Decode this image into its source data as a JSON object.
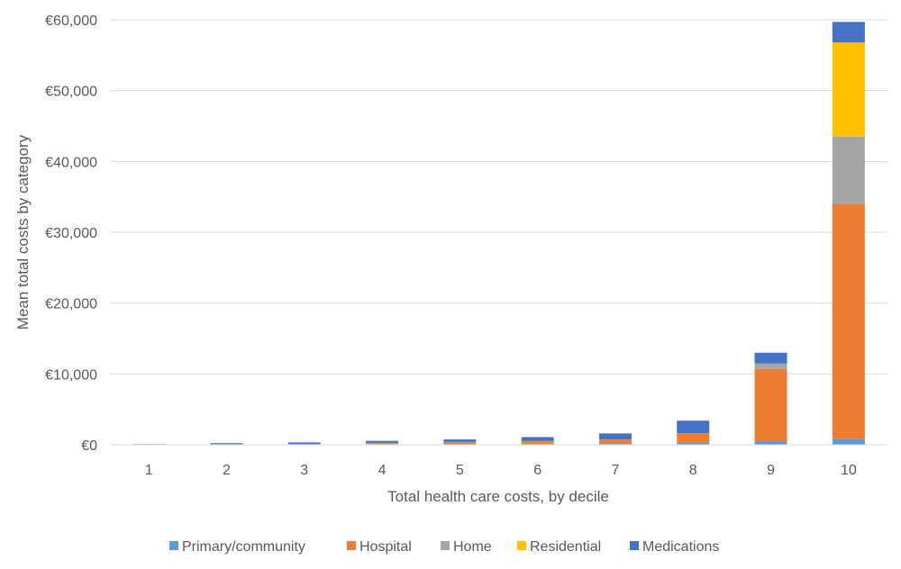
{
  "chart_data": {
    "type": "bar",
    "stacked": true,
    "title": "",
    "xlabel": "Total health care costs, by decile",
    "ylabel": "Mean total costs by category",
    "categories": [
      "1",
      "2",
      "3",
      "4",
      "5",
      "6",
      "7",
      "8",
      "9",
      "10"
    ],
    "ylim": [
      0,
      60000
    ],
    "yticks": [
      0,
      10000,
      20000,
      30000,
      40000,
      50000,
      60000
    ],
    "ytick_labels": [
      "€0",
      "€10,000",
      "€20,000",
      "€30,000",
      "€40,000",
      "€50,000",
      "€60,000"
    ],
    "grid": true,
    "legend_position": "bottom",
    "series": [
      {
        "name": "Primary/community",
        "color": "#5B9BD5",
        "values": [
          10,
          60,
          80,
          100,
          130,
          150,
          200,
          300,
          500,
          800
        ]
      },
      {
        "name": "Hospital",
        "color": "#ED7D31",
        "values": [
          0,
          20,
          50,
          150,
          250,
          350,
          500,
          1300,
          10200,
          33200
        ]
      },
      {
        "name": "Home",
        "color": "#A5A5A5",
        "values": [
          0,
          0,
          0,
          20,
          20,
          30,
          50,
          50,
          800,
          9500
        ]
      },
      {
        "name": "Residential",
        "color": "#FFC000",
        "values": [
          0,
          0,
          0,
          0,
          0,
          0,
          0,
          0,
          0,
          13300
        ]
      },
      {
        "name": "Medications",
        "color": "#4472C4",
        "values": [
          80,
          150,
          200,
          280,
          350,
          550,
          850,
          1750,
          1500,
          2900
        ]
      }
    ]
  }
}
